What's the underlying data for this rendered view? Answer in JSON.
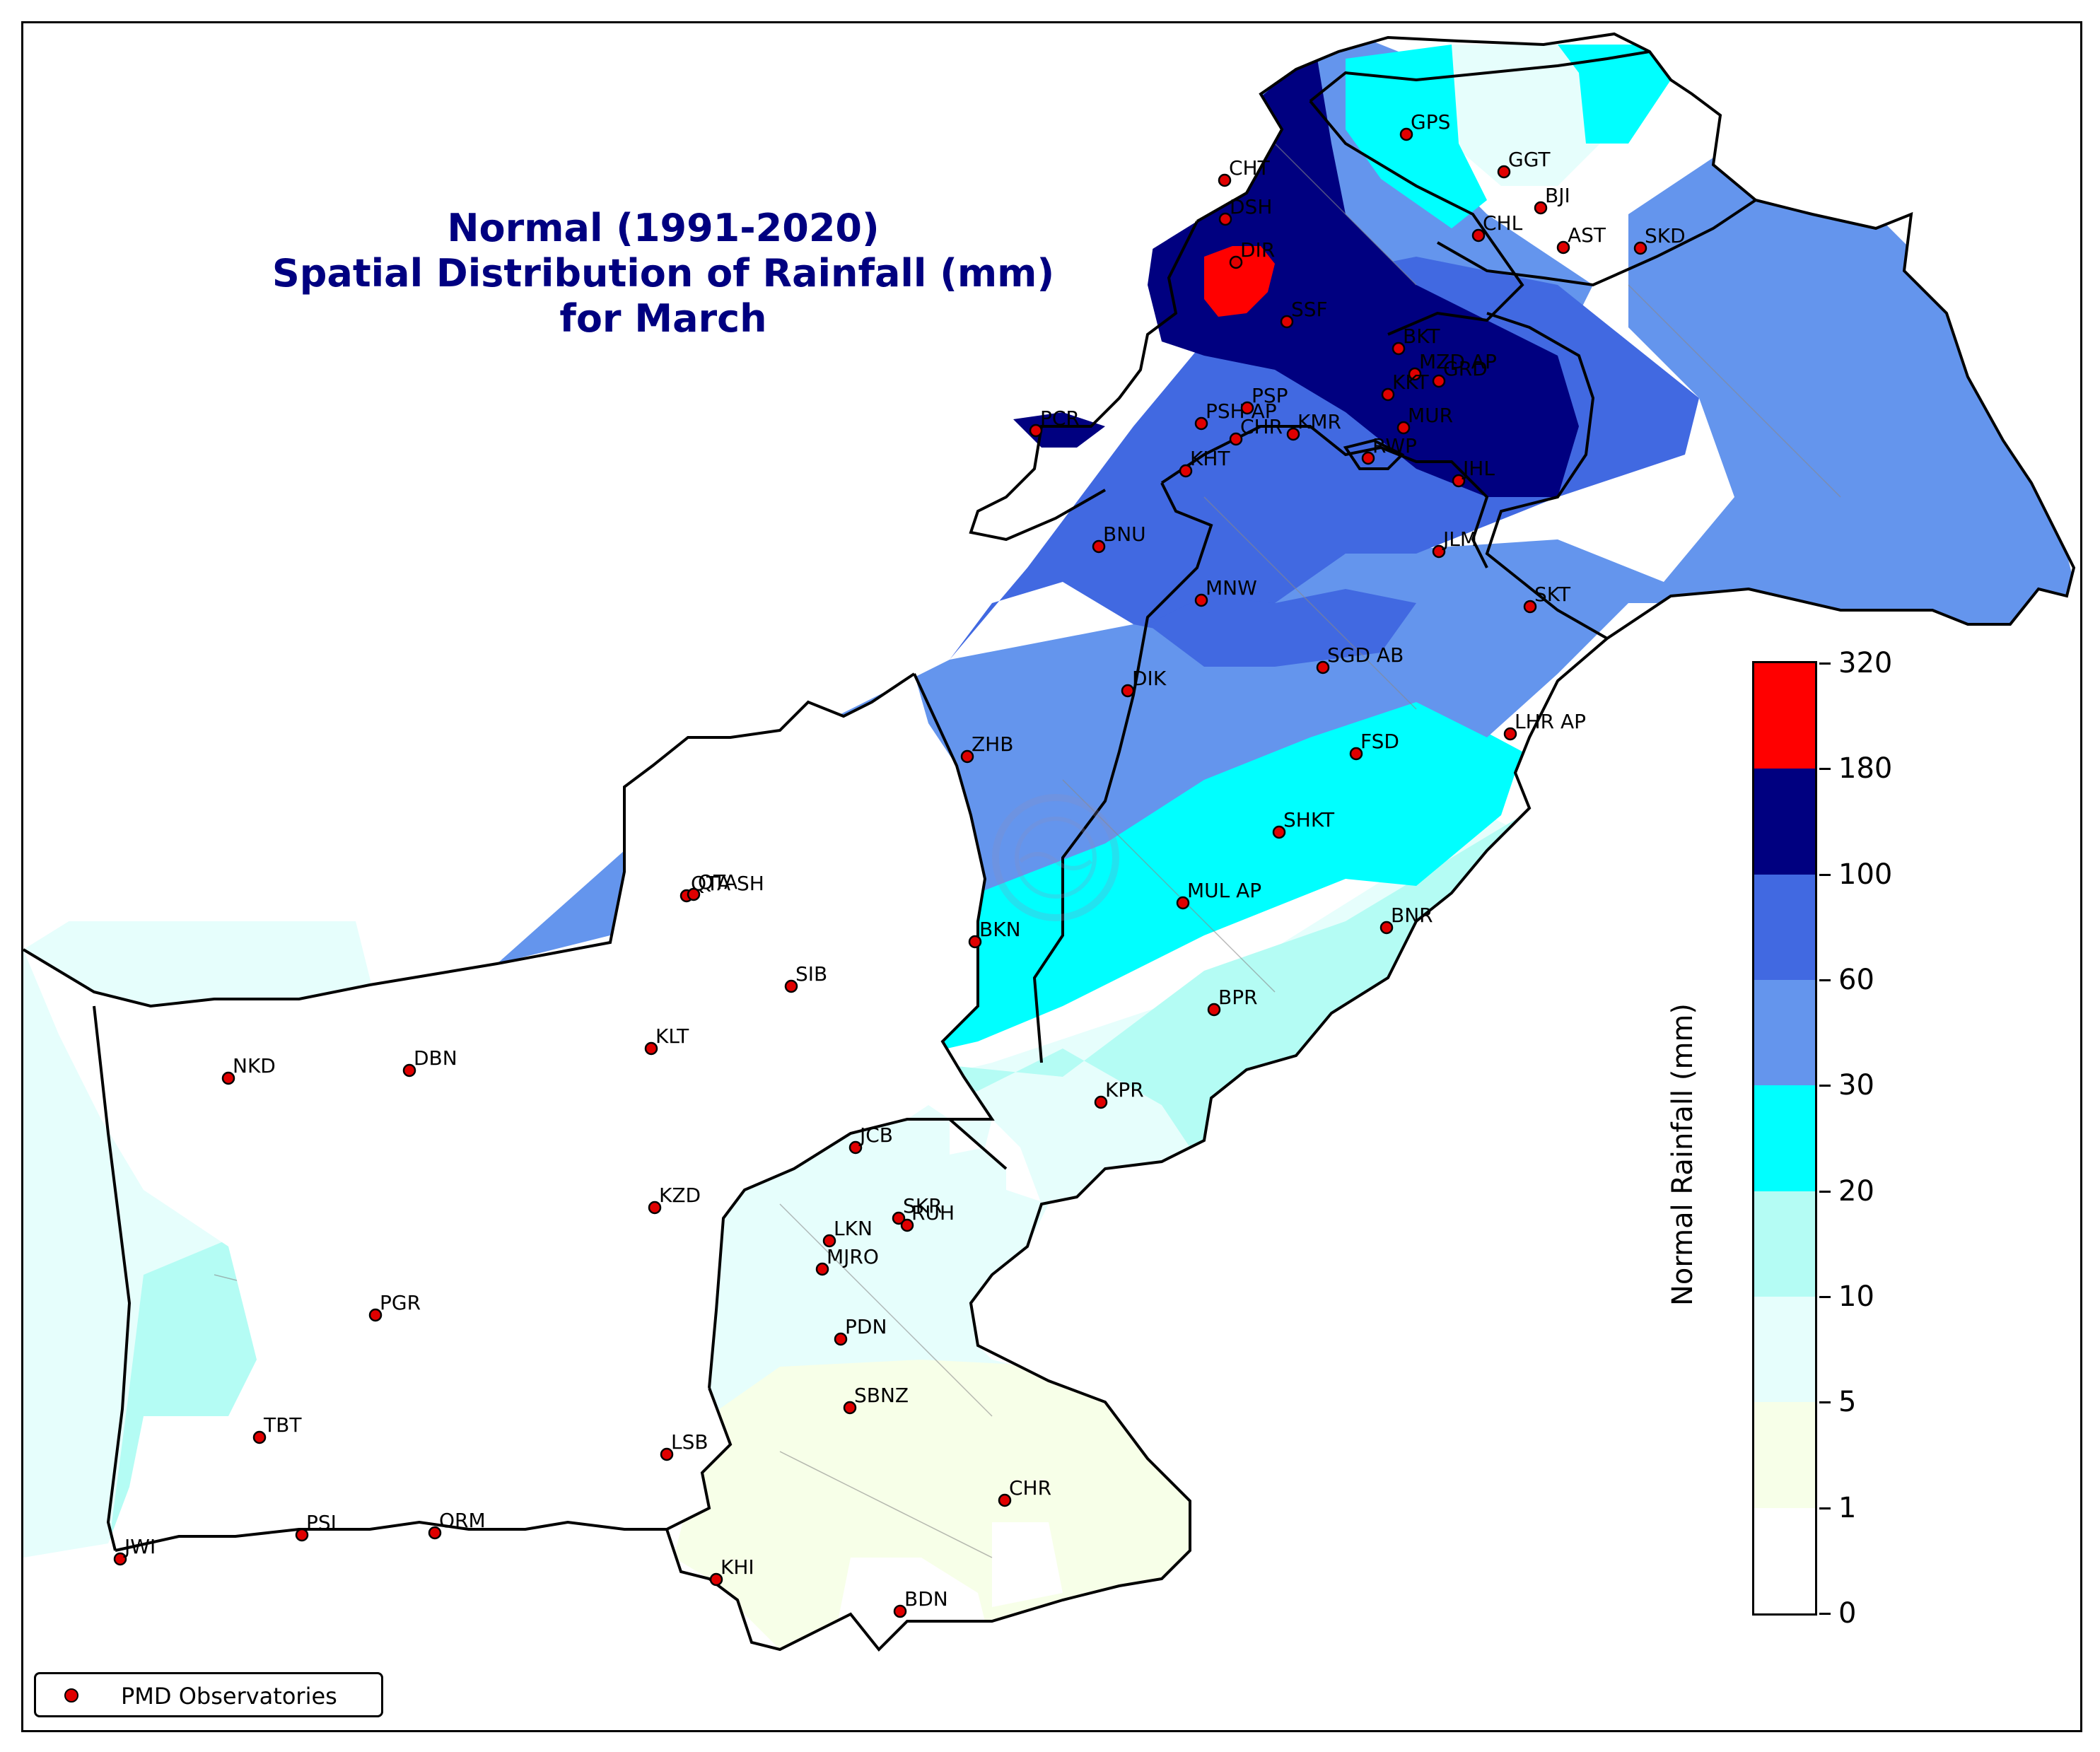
{
  "title": {
    "line1": "Normal (1991-2020)",
    "line2": "Spatial Distribution of Rainfall (mm)",
    "line3": "for March"
  },
  "colorbar": {
    "label": "Normal Rainfall (mm)",
    "ticks": [
      "320",
      "180",
      "100",
      "60",
      "30",
      "20",
      "10",
      "5",
      "1",
      "0"
    ],
    "bins": [
      {
        "range": "180-320",
        "color": "#ff0000"
      },
      {
        "range": "100-180",
        "color": "#000080"
      },
      {
        "range": "60-100",
        "color": "#4169e1"
      },
      {
        "range": "30-60",
        "color": "#6495ed"
      },
      {
        "range": "20-30",
        "color": "#00ffff"
      },
      {
        "range": "10-20",
        "color": "#b4fcf4"
      },
      {
        "range": "5-10",
        "color": "#e6fefc"
      },
      {
        "range": "1-5",
        "color": "#f7ffe8"
      },
      {
        "range": "0-1",
        "color": "#ffffff"
      }
    ]
  },
  "legend": {
    "label": "PMD Observatories",
    "marker_color": "#e00000"
  },
  "stations": [
    "GPS",
    "GGT",
    "BJI",
    "CHL",
    "AST",
    "SKD",
    "CHT",
    "DSH",
    "DIR",
    "SSF",
    "BKT",
    "MZD AP",
    "GRD",
    "KKT",
    "MUR",
    "RWP",
    "JHL",
    "KHT",
    "PSH AP",
    "PSP",
    "CHR",
    "KMR",
    "PCR",
    "BNU",
    "LHR AP",
    "JLM",
    "SKT",
    "MNW",
    "DIK",
    "SGD AB",
    "ZHB",
    "FSD",
    "SHKT",
    "QTA SH",
    "QTA",
    "MUL AP",
    "BKN",
    "BNR",
    "SIB",
    "KLT",
    "BPR",
    "NKD",
    "DBN",
    "KPR",
    "JCB",
    "KZD",
    "SKR",
    "RUH",
    "LKN",
    "MJRO",
    "PDN",
    "PGR",
    "SBNZ",
    "TBT",
    "LSB",
    "CHR",
    "PSI",
    "ORM",
    "JWI",
    "KHI",
    "BDN"
  ]
}
